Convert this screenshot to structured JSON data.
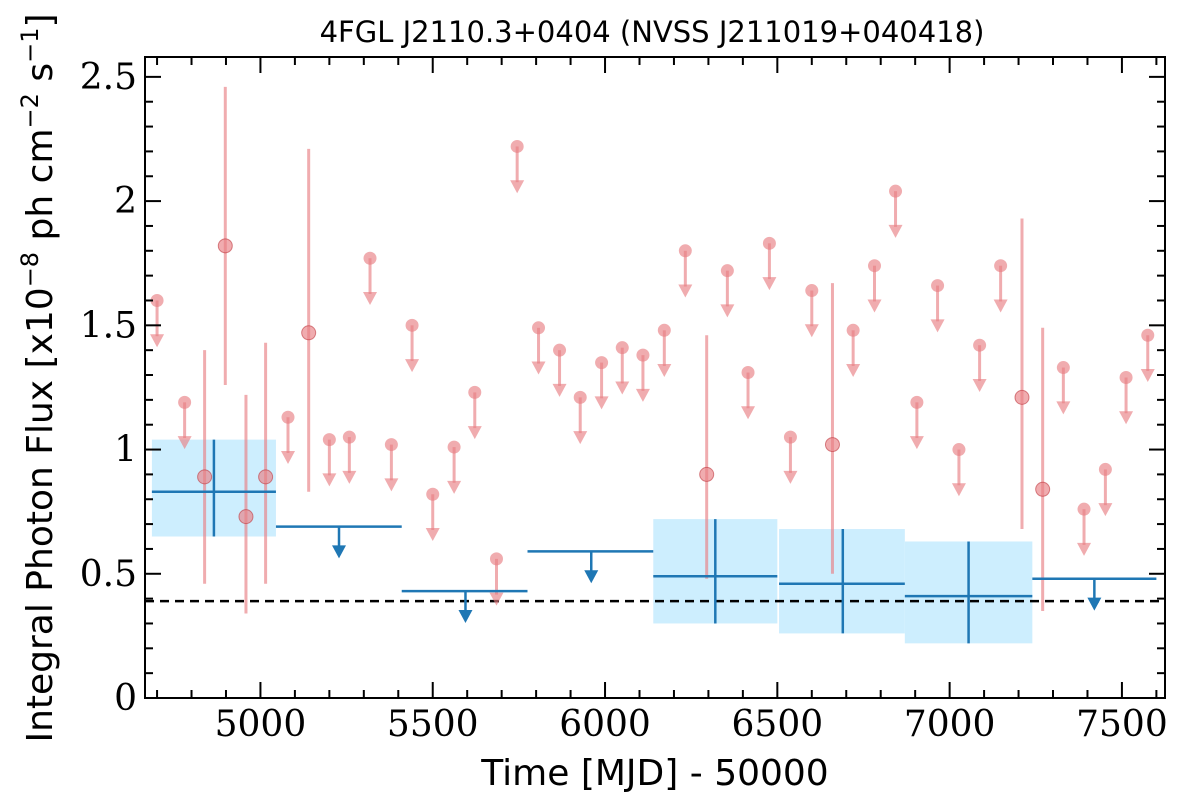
{
  "chart_data": {
    "type": "scatter",
    "title": "4FGL J2110.3+0404 (NVSS J211019+040418)",
    "xlabel": "Time [MJD] - 50000",
    "ylabel": "Integral Photon Flux [x10^-8 ph cm^-2 s^-1]",
    "ylabel_parts": {
      "main": "Integral Photon Flux [x10",
      "exp1": "−8",
      "mid": " ph cm",
      "exp2": "−2",
      "mid2": " s",
      "exp3": "−1",
      "end": "]"
    },
    "xlim": [
      4665,
      7625
    ],
    "ylim": [
      0,
      2.58
    ],
    "x_ticks": [
      5000,
      5500,
      6000,
      6500,
      7000,
      7500
    ],
    "x_tick_labels": [
      "5000",
      "5500",
      "6000",
      "6500",
      "7000",
      "7500"
    ],
    "y_ticks": [
      0,
      0.5,
      1,
      1.5,
      2,
      2.5
    ],
    "y_tick_labels": [
      "0",
      "0.5",
      "1",
      "1.5",
      "2",
      "2.5"
    ],
    "reference_level": 0.39,
    "colors": {
      "short_bins": "#e87f84",
      "long_bins": "#1f77b4",
      "band": "#cdeefe",
      "reference": "#000000"
    },
    "series": [
      {
        "bin": "short",
        "detections": [
          {
            "x": 4838,
            "y": 0.89,
            "ylow": 0.46,
            "yhigh": 1.4
          },
          {
            "x": 4898,
            "y": 1.82,
            "ylow": 1.26,
            "yhigh": 2.46
          },
          {
            "x": 4958,
            "y": 0.73,
            "ylow": 0.34,
            "yhigh": 1.22
          },
          {
            "x": 5015,
            "y": 0.89,
            "ylow": 0.46,
            "yhigh": 1.43
          },
          {
            "x": 5140,
            "y": 1.47,
            "ylow": 0.83,
            "yhigh": 2.21
          },
          {
            "x": 6295,
            "y": 0.9,
            "ylow": 0.48,
            "yhigh": 1.46
          },
          {
            "x": 6660,
            "y": 1.02,
            "ylow": 0.5,
            "yhigh": 1.67
          },
          {
            "x": 7210,
            "y": 1.21,
            "ylow": 0.68,
            "yhigh": 1.93
          },
          {
            "x": 7270,
            "y": 0.84,
            "ylow": 0.35,
            "yhigh": 1.49
          }
        ],
        "upper_limits": [
          {
            "x": 4700,
            "y": 1.6
          },
          {
            "x": 4780,
            "y": 1.19
          },
          {
            "x": 5080,
            "y": 1.13
          },
          {
            "x": 5200,
            "y": 1.04
          },
          {
            "x": 5258,
            "y": 1.05
          },
          {
            "x": 5318,
            "y": 1.77
          },
          {
            "x": 5380,
            "y": 1.02
          },
          {
            "x": 5440,
            "y": 1.5
          },
          {
            "x": 5500,
            "y": 0.82
          },
          {
            "x": 5562,
            "y": 1.01
          },
          {
            "x": 5622,
            "y": 1.23
          },
          {
            "x": 5685,
            "y": 0.56
          },
          {
            "x": 5745,
            "y": 2.22
          },
          {
            "x": 5807,
            "y": 1.49
          },
          {
            "x": 5868,
            "y": 1.4
          },
          {
            "x": 5928,
            "y": 1.21
          },
          {
            "x": 5990,
            "y": 1.35
          },
          {
            "x": 6050,
            "y": 1.41
          },
          {
            "x": 6110,
            "y": 1.38
          },
          {
            "x": 6172,
            "y": 1.48
          },
          {
            "x": 6233,
            "y": 1.8
          },
          {
            "x": 6355,
            "y": 1.72
          },
          {
            "x": 6415,
            "y": 1.31
          },
          {
            "x": 6477,
            "y": 1.83
          },
          {
            "x": 6538,
            "y": 1.05
          },
          {
            "x": 6600,
            "y": 1.64
          },
          {
            "x": 6720,
            "y": 1.48
          },
          {
            "x": 6782,
            "y": 1.74
          },
          {
            "x": 6843,
            "y": 2.04
          },
          {
            "x": 6905,
            "y": 1.19
          },
          {
            "x": 6965,
            "y": 1.66
          },
          {
            "x": 7027,
            "y": 1.0
          },
          {
            "x": 7087,
            "y": 1.42
          },
          {
            "x": 7148,
            "y": 1.74
          },
          {
            "x": 7390,
            "y": 0.76
          },
          {
            "x": 7330,
            "y": 1.33
          },
          {
            "x": 7452,
            "y": 0.92
          },
          {
            "x": 7512,
            "y": 1.29
          },
          {
            "x": 7575,
            "y": 1.46
          }
        ]
      },
      {
        "bin": "long",
        "detections": [
          {
            "x": 4865,
            "xlow": 4685,
            "xhigh": 5045,
            "y": 0.83,
            "ylow": 0.65,
            "yhigh": 1.04,
            "band_low": 0.65,
            "band_high": 1.04
          },
          {
            "x": 6320,
            "xlow": 6140,
            "xhigh": 6500,
            "y": 0.49,
            "ylow": 0.3,
            "yhigh": 0.72,
            "band_low": 0.3,
            "band_high": 0.72
          },
          {
            "x": 6690,
            "xlow": 6505,
            "xhigh": 6870,
            "y": 0.46,
            "ylow": 0.26,
            "yhigh": 0.68,
            "band_low": 0.26,
            "band_high": 0.68
          },
          {
            "x": 7055,
            "xlow": 6870,
            "xhigh": 7240,
            "y": 0.41,
            "ylow": 0.22,
            "yhigh": 0.63,
            "band_low": 0.22,
            "band_high": 0.63
          }
        ],
        "upper_limits": [
          {
            "xlow": 5045,
            "xhigh": 5410,
            "x": 5228,
            "y": 0.69
          },
          {
            "xlow": 5410,
            "xhigh": 5775,
            "x": 5595,
            "y": 0.43
          },
          {
            "xlow": 5775,
            "xhigh": 6140,
            "x": 5960,
            "y": 0.59
          },
          {
            "xlow": 7240,
            "xhigh": 7600,
            "x": 7420,
            "y": 0.48
          }
        ]
      }
    ]
  }
}
